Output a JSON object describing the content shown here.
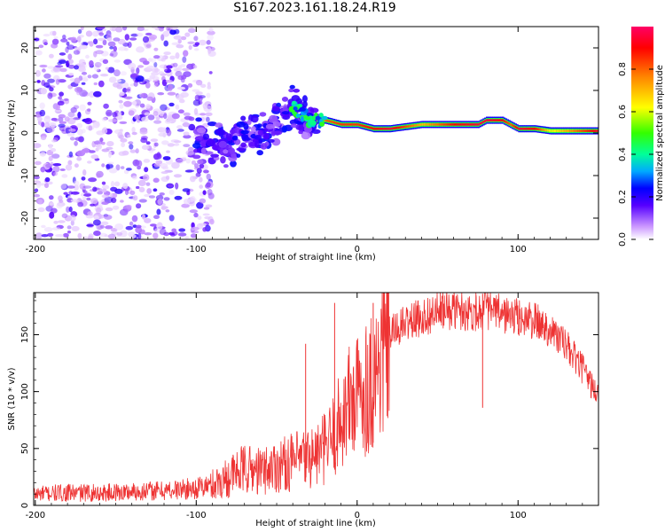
{
  "figure_title": "S167.2023.161.18.24.R19",
  "chart_data": [
    {
      "id": "spectrogram",
      "type": "heatmap",
      "title": "",
      "xlabel": "Height of straight line (km)",
      "ylabel": "Frequency (Hz)",
      "xlim": [
        -201,
        150
      ],
      "ylim": [
        -25,
        25
      ],
      "xticks": [
        -200,
        -100,
        0,
        100
      ],
      "xtick_labels": [
        "-200",
        "-100",
        "0",
        "100"
      ],
      "yticks": [
        20,
        10,
        0,
        -10,
        -20
      ],
      "ytick_labels": [
        "20",
        "10",
        "0",
        "-10",
        "-20"
      ],
      "colorbar": {
        "label": "Normalized spectral amplitude",
        "range": [
          0.0,
          1.0
        ],
        "ticks": [
          0.0,
          0.2,
          0.4,
          0.6,
          0.8
        ],
        "tick_labels": [
          "0.0",
          "0.2",
          "0.4",
          "0.6",
          "0.8"
        ]
      },
      "signal_ridge": {
        "x": [
          -100,
          -90,
          -80,
          -70,
          -60,
          -50,
          -40,
          -35,
          -30,
          -20,
          -10,
          0,
          10,
          20,
          40,
          60,
          75,
          80,
          90,
          95,
          100,
          110,
          120,
          150
        ],
        "freq_hz": [
          -1,
          -3,
          -2,
          -1,
          0,
          2,
          6,
          5,
          3,
          3,
          2,
          2,
          1,
          1,
          2,
          2,
          2,
          3,
          3,
          2,
          1,
          1,
          0.5,
          0.5
        ],
        "amplitude": [
          0.2,
          0.3,
          0.3,
          0.25,
          0.3,
          0.35,
          0.4,
          0.45,
          0.5,
          0.8,
          0.85,
          0.85,
          0.9,
          0.95,
          0.7,
          0.9,
          0.95,
          0.95,
          0.9,
          0.8,
          0.95,
          0.9,
          0.6,
          0.95
        ]
      },
      "noise_region": {
        "x_from": -200,
        "x_to": -100,
        "amplitude_max": 0.2
      }
    },
    {
      "id": "snr",
      "type": "line",
      "title": "",
      "xlabel": "Height of straight line (km)",
      "ylabel": "SNR (10 * v/v)",
      "xlim": [
        -201,
        150
      ],
      "ylim": [
        0,
        187
      ],
      "xticks": [
        -200,
        -100,
        0,
        100
      ],
      "xtick_labels": [
        "-200",
        "-100",
        "0",
        "100"
      ],
      "yticks": [
        0,
        50,
        100,
        150
      ],
      "ytick_labels": [
        "0",
        "50",
        "100",
        "150"
      ],
      "series": [
        {
          "name": "SNR",
          "color": "#ee3333",
          "x": [
            -200,
            -180,
            -160,
            -140,
            -120,
            -100,
            -90,
            -80,
            -70,
            -60,
            -50,
            -40,
            -30,
            -25,
            -20,
            -15,
            -10,
            -5,
            0,
            5,
            10,
            15,
            20,
            30,
            40,
            50,
            60,
            70,
            80,
            90,
            100,
            110,
            120,
            130,
            140,
            150
          ],
          "y": [
            10,
            11,
            11,
            12,
            13,
            15,
            18,
            25,
            32,
            30,
            35,
            38,
            42,
            45,
            50,
            60,
            75,
            90,
            95,
            105,
            110,
            130,
            150,
            160,
            165,
            170,
            172,
            170,
            172,
            168,
            165,
            162,
            155,
            140,
            120,
            95
          ]
        }
      ],
      "spikes": [
        {
          "x": -32,
          "y": 142
        },
        {
          "x": -14,
          "y": 178
        },
        {
          "x": 10,
          "y": 178
        },
        {
          "x": 78,
          "y": 186
        }
      ]
    }
  ]
}
